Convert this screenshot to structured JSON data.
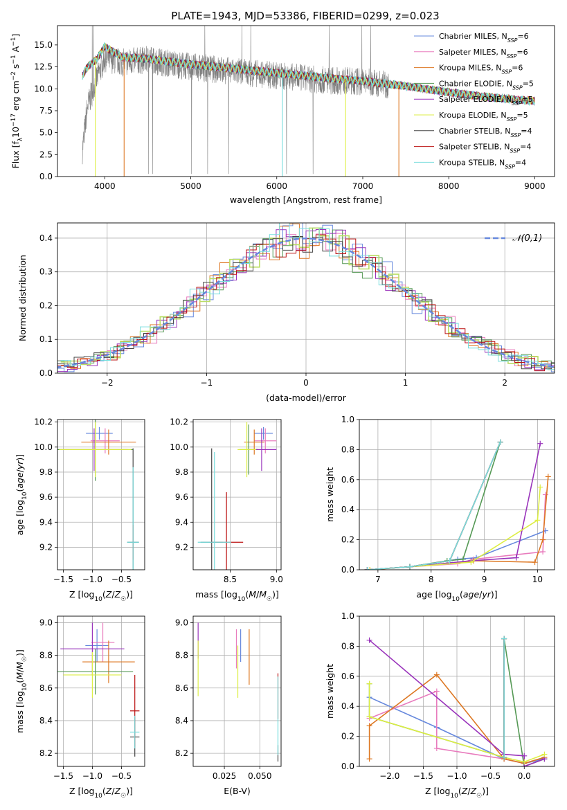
{
  "figure_title": "PLATE=1943, MJD=53386, FIBERID=0299, z=0.023",
  "colors": {
    "chabrier_miles": "#6688dd",
    "salpeter_miles": "#e87bbd",
    "kroupa_miles": "#dd7722",
    "chabrier_elodie": "#559955",
    "salpeter_elodie": "#9933bb",
    "kroupa_elodie": "#ddee44",
    "chabrier_stelib": "#444444",
    "salpeter_stelib": "#bb1111",
    "kroupa_stelib": "#77dddd",
    "kroupa_elodie_dark": "#bbdd66",
    "gaussian": "#6688dd",
    "data_gray": "#808080"
  },
  "legend_models": [
    {
      "key": "chabrier_miles",
      "label": "Chabrier MILES, N",
      "sub": "SSP",
      "tail": "=6"
    },
    {
      "key": "salpeter_miles",
      "label": "Salpeter MILES, N",
      "sub": "SSP",
      "tail": "=6"
    },
    {
      "key": "kroupa_miles",
      "label": "Kroupa MILES, N",
      "sub": "SSP",
      "tail": "=6"
    },
    {
      "key": "chabrier_elodie",
      "label": "Chabrier ELODIE, N",
      "sub": "SSP",
      "tail": "=5"
    },
    {
      "key": "salpeter_elodie",
      "label": "Salpeter ELODIE, N",
      "sub": "SSP",
      "tail": "=5"
    },
    {
      "key": "kroupa_elodie",
      "label": "Kroupa ELODIE, N",
      "sub": "SSP",
      "tail": "=5"
    },
    {
      "key": "chabrier_stelib",
      "label": "Chabrier STELIB, N",
      "sub": "SSP",
      "tail": "=4"
    },
    {
      "key": "salpeter_stelib",
      "label": "Salpeter STELIB, N",
      "sub": "SSP",
      "tail": "=4"
    },
    {
      "key": "kroupa_stelib",
      "label": "Kroupa STELIB, N",
      "sub": "SSP",
      "tail": "=4"
    }
  ],
  "chart_data": [
    {
      "id": "spectrum",
      "type": "line",
      "title": "PLATE=1943, MJD=53386, FIBERID=0299, z=0.023",
      "xlabel": "wavelength [Angstrom, rest frame]",
      "ylabel": "Flux [fλ10⁻¹⁷ erg cm⁻² s⁻¹ A⁻¹]",
      "xlim": [
        3450,
        9230
      ],
      "ylim": [
        0,
        17.2
      ],
      "xticks": [
        4000,
        5000,
        6000,
        7000,
        8000,
        9000
      ],
      "yticks": [
        0.0,
        2.5,
        5.0,
        7.5,
        10.0,
        12.5,
        15.0
      ],
      "series": [
        {
          "key": "chabrier_miles",
          "x": [
            3750,
            3900,
            4100,
            4300,
            4600,
            5000,
            5500,
            6000,
            6500,
            7000,
            7400
          ]
        },
        {
          "key": "data",
          "x": [
            3740,
            3800,
            3900,
            4000,
            4200,
            4500,
            5000,
            5500,
            6000,
            6500,
            7000,
            7500,
            8000,
            8500,
            9000
          ],
          "y": [
            3.0,
            8.0,
            11.0,
            13.5,
            13.0,
            13.3,
            12.5,
            12.0,
            11.5,
            11.0,
            10.8,
            10.3,
            9.5,
            9.0,
            8.5
          ]
        },
        {
          "key": "model",
          "x": [
            3740,
            3800,
            3900,
            4000,
            4200,
            4500,
            5000,
            5500,
            6000,
            6500,
            7000,
            7500,
            8000,
            8500,
            9000
          ],
          "y": [
            11.5,
            12.5,
            13.3,
            14.8,
            13.6,
            13.4,
            12.8,
            12.3,
            11.8,
            11.3,
            10.9,
            10.3,
            9.6,
            9.0,
            8.6
          ]
        }
      ],
      "model_drops": [
        {
          "key": "kroupa_elodie",
          "x": 3890
        },
        {
          "key": "kroupa_miles",
          "x": 4225
        },
        {
          "key": "kroupa_stelib",
          "x": 6065
        },
        {
          "key": "kroupa_elodie",
          "x": 6800
        },
        {
          "key": "kroupa_miles",
          "x": 7420
        }
      ]
    },
    {
      "id": "residuals",
      "type": "line",
      "xlabel": "(data-model)/error",
      "ylabel": "Normed distribution",
      "xlim": [
        -2.5,
        2.5
      ],
      "ylim": [
        0,
        0.445
      ],
      "xticks": [
        -2,
        -1,
        0,
        1,
        2
      ],
      "yticks": [
        0.0,
        0.1,
        0.2,
        0.3,
        0.4
      ],
      "gaussian_label": "𝒩(0,1)",
      "gaussian": {
        "mean": 0,
        "sigma": 1
      }
    },
    {
      "id": "age_vs_Z",
      "type": "scatter",
      "xlabel": "Z [log₁₀(Z/Z☉)]",
      "ylabel": "age  [log₁₀(age/yr)]",
      "xlim": [
        -1.6,
        -0.1
      ],
      "ylim": [
        9.02,
        10.22
      ],
      "xticks": [
        -1.5,
        -1.0,
        -0.5
      ],
      "yticks": [
        9.2,
        9.4,
        9.6,
        9.8,
        10.0,
        10.2
      ],
      "points": [
        {
          "key": "chabrier_miles",
          "x": -0.88,
          "xerr": 0.23,
          "y": 10.11,
          "yerr": 0.05
        },
        {
          "key": "salpeter_miles",
          "x": -0.78,
          "xerr": 0.25,
          "y": 10.05,
          "yerr": 0.1
        },
        {
          "key": "kroupa_miles",
          "x": -0.72,
          "xerr": 0.47,
          "y": 10.04,
          "yerr": 0.1
        },
        {
          "key": "chabrier_elodie",
          "x": -0.95,
          "xerr": 0.65,
          "y": 9.98,
          "yerr": 0.25
        },
        {
          "key": "salpeter_elodie",
          "x": -0.97,
          "xerr": 0.58,
          "y": 9.98,
          "yerr": 0.17
        },
        {
          "key": "kroupa_elodie",
          "x": -0.95,
          "xerr": 0.62,
          "y": 9.98,
          "yerr": 0.22
        },
        {
          "key": "chabrier_stelib",
          "x": -0.3,
          "xerr": 0.1,
          "y": 9.24,
          "yerr": 0.75
        },
        {
          "key": "salpeter_stelib",
          "x": -0.3,
          "xerr": 0.02,
          "y": 9.24,
          "yerr": 0.14
        },
        {
          "key": "kroupa_stelib",
          "x": -0.3,
          "xerr": 0.1,
          "y": 9.24,
          "yerr": 0.6
        }
      ]
    },
    {
      "id": "age_vs_mass",
      "type": "scatter",
      "xlabel": "mass [log₁₀(M/M☉)]",
      "xlim": [
        8.1,
        9.05
      ],
      "ylim": [
        9.02,
        10.22
      ],
      "xticks": [
        8.5,
        9.0
      ],
      "yticks": [
        9.2,
        9.4,
        9.6,
        9.8,
        10.0,
        10.2
      ],
      "points": [
        {
          "key": "chabrier_miles",
          "x": 8.86,
          "xerr": 0.1,
          "y": 10.11,
          "yerr": 0.05
        },
        {
          "key": "salpeter_miles",
          "x": 8.88,
          "xerr": 0.12,
          "y": 10.05,
          "yerr": 0.1
        },
        {
          "key": "kroupa_miles",
          "x": 8.76,
          "xerr": 0.11,
          "y": 10.04,
          "yerr": 0.1
        },
        {
          "key": "chabrier_elodie",
          "x": 8.7,
          "xerr": 0.1,
          "y": 9.98,
          "yerr": 0.2
        },
        {
          "key": "salpeter_elodie",
          "x": 8.84,
          "xerr": 0.16,
          "y": 9.98,
          "yerr": 0.17
        },
        {
          "key": "kroupa_elodie",
          "x": 8.68,
          "xerr": 0.1,
          "y": 9.98,
          "yerr": 0.22
        },
        {
          "key": "chabrier_stelib",
          "x": 8.3,
          "xerr": 0.12,
          "y": 9.24,
          "yerr": 0.75
        },
        {
          "key": "salpeter_stelib",
          "x": 8.46,
          "xerr": 0.18,
          "y": 9.24,
          "yerr": 0.4
        },
        {
          "key": "kroupa_stelib",
          "x": 8.33,
          "xerr": 0.18,
          "y": 9.24,
          "yerr": 0.72
        }
      ]
    },
    {
      "id": "massweight_vs_age",
      "type": "line",
      "xlabel": "age  [log₁₀(age/yr)]",
      "ylabel": "mass weight",
      "xlim": [
        6.65,
        10.32
      ],
      "ylim": [
        0,
        1.0
      ],
      "xticks": [
        7,
        8,
        9,
        10
      ],
      "yticks": [
        0.0,
        0.2,
        0.4,
        0.6,
        0.8,
        1.0
      ],
      "series": [
        {
          "key": "chabrier_miles",
          "x": [
            6.8,
            7.6,
            8.5,
            8.85,
            10.15
          ],
          "y": [
            0.0,
            0.02,
            0.07,
            0.08,
            0.26
          ]
        },
        {
          "key": "salpeter_miles",
          "x": [
            6.85,
            7.6,
            8.5,
            8.8,
            10.1,
            10.15
          ],
          "y": [
            0.0,
            0.02,
            0.04,
            0.07,
            0.12,
            0.5
          ]
        },
        {
          "key": "kroupa_miles",
          "x": [
            6.85,
            7.6,
            8.8,
            9.95,
            10.1,
            10.2
          ],
          "y": [
            0.0,
            0.02,
            0.06,
            0.05,
            0.2,
            0.62
          ]
        },
        {
          "key": "chabrier_elodie",
          "x": [
            6.8,
            7.6,
            8.3,
            8.6,
            9.3
          ],
          "y": [
            0.0,
            0.02,
            0.06,
            0.07,
            0.85
          ]
        },
        {
          "key": "salpeter_elodie",
          "x": [
            6.8,
            7.6,
            8.75,
            9.6,
            10.05
          ],
          "y": [
            0.0,
            0.02,
            0.06,
            0.08,
            0.84
          ]
        },
        {
          "key": "kroupa_elodie",
          "x": [
            6.85,
            7.6,
            8.75,
            10.0,
            10.05
          ],
          "y": [
            0.0,
            0.02,
            0.05,
            0.33,
            0.55
          ]
        },
        {
          "key": "chabrier_stelib",
          "x": [
            6.8,
            7.6,
            8.35,
            9.3
          ],
          "y": [
            0.0,
            0.02,
            0.06,
            0.85
          ]
        },
        {
          "key": "salpeter_stelib",
          "x": [
            6.8,
            7.6,
            8.35,
            9.3
          ],
          "y": [
            0.0,
            0.02,
            0.06,
            0.85
          ]
        },
        {
          "key": "kroupa_stelib",
          "x": [
            6.8,
            7.6,
            8.35,
            9.3
          ],
          "y": [
            0.0,
            0.02,
            0.06,
            0.85
          ]
        }
      ]
    },
    {
      "id": "mass_vs_Z",
      "type": "scatter",
      "xlabel": "Z [log₁₀(Z/Z☉)]",
      "ylabel": "mass [log₁₀(M/M☉)]",
      "xlim": [
        -1.6,
        -0.1
      ],
      "ylim": [
        8.12,
        9.04
      ],
      "xticks": [
        -1.5,
        -1.0,
        -0.5
      ],
      "yticks": [
        8.2,
        8.4,
        8.6,
        8.8,
        9.0
      ],
      "points": [
        {
          "key": "chabrier_miles",
          "x": -0.92,
          "xerr": 0.2,
          "y": 8.86,
          "yerr": 0.1
        },
        {
          "key": "salpeter_miles",
          "x": -0.82,
          "xerr": 0.2,
          "y": 8.88,
          "yerr": 0.12
        },
        {
          "key": "kroupa_miles",
          "x": -0.72,
          "xerr": 0.45,
          "y": 8.76,
          "yerr": 0.13
        },
        {
          "key": "chabrier_elodie",
          "x": -0.95,
          "xerr": 0.65,
          "y": 8.7,
          "yerr": 0.14
        },
        {
          "key": "salpeter_elodie",
          "x": -1.0,
          "xerr": 0.55,
          "y": 8.84,
          "yerr": 0.16
        },
        {
          "key": "kroupa_elodie",
          "x": -1.0,
          "xerr": 0.5,
          "y": 8.68,
          "yerr": 0.14
        },
        {
          "key": "chabrier_stelib",
          "x": -0.27,
          "xerr": 0.08,
          "y": 8.3,
          "yerr": 0.12
        },
        {
          "key": "salpeter_stelib",
          "x": -0.27,
          "xerr": 0.08,
          "y": 8.46,
          "yerr": 0.22
        },
        {
          "key": "kroupa_stelib",
          "x": -0.27,
          "xerr": 0.08,
          "y": 8.33,
          "yerr": 0.1
        }
      ]
    },
    {
      "id": "mass_vs_ebv",
      "type": "scatter",
      "xlabel": "E(B-V)",
      "xlim": [
        0.003,
        0.065
      ],
      "ylim": [
        8.12,
        9.04
      ],
      "xticks": [
        0.025,
        0.05
      ],
      "xtick_labels": [
        "0.025",
        "0.050"
      ],
      "yticks": [
        8.2,
        8.4,
        8.6,
        8.8,
        9.0
      ],
      "points": [
        {
          "key": "salpeter_elodie",
          "x": 0.0065,
          "y": 8.89,
          "yerr": 0.11
        },
        {
          "key": "kroupa_elodie",
          "x": 0.0065,
          "y": 8.72,
          "yerr": 0.17
        },
        {
          "key": "salpeter_miles",
          "x": 0.0335,
          "y": 8.84,
          "yerr": 0.12
        },
        {
          "key": "chabrier_miles",
          "x": 0.0365,
          "y": 8.86,
          "yerr": 0.1
        },
        {
          "key": "kroupa_miles",
          "x": 0.0425,
          "y": 8.79,
          "yerr": 0.17
        },
        {
          "key": "kroupa_elodie",
          "x": 0.0345,
          "y": 8.7,
          "yerr": 0.16
        },
        {
          "key": "salpeter_stelib",
          "x": 0.0628,
          "y": 8.55,
          "yerr": 0.14
        },
        {
          "key": "chabrier_stelib",
          "x": 0.0628,
          "y": 8.2,
          "yerr": 0.05
        },
        {
          "key": "kroupa_stelib",
          "x": 0.0628,
          "y": 8.43,
          "yerr": 0.24
        }
      ]
    },
    {
      "id": "massweight_vs_Z",
      "type": "line",
      "xlabel": "Z [log₁₀(Z/Z☉)]",
      "ylabel": "mass weight",
      "xlim": [
        -2.45,
        0.45
      ],
      "ylim": [
        0,
        1.0
      ],
      "xticks": [
        -2.0,
        -1.5,
        -1.0,
        -0.5,
        0.0
      ],
      "yticks": [
        0.0,
        0.2,
        0.4,
        0.6,
        0.8,
        1.0
      ],
      "series": [
        {
          "key": "chabrier_miles",
          "x": [
            -2.3,
            -1.3,
            -0.3,
            0.0,
            0.3
          ],
          "y": [
            0.46,
            0.26,
            0.05,
            0.02,
            0.05
          ]
        },
        {
          "key": "salpeter_miles",
          "x": [
            -2.3,
            -1.3,
            -1.3,
            -0.3,
            0.0,
            0.3
          ],
          "y": [
            0.32,
            0.5,
            0.12,
            0.05,
            0.02,
            0.06
          ]
        },
        {
          "key": "kroupa_miles",
          "x": [
            -2.3,
            -2.3,
            -1.3,
            -0.3,
            0.0,
            0.3
          ],
          "y": [
            0.05,
            0.27,
            0.61,
            0.05,
            0.02,
            0.06
          ]
        },
        {
          "key": "chabrier_elodie",
          "x": [
            -2.3,
            -2.3,
            -0.3,
            -0.3,
            0.0,
            0.3
          ],
          "y": [
            0.55,
            0.33,
            0.06,
            0.85,
            0.0,
            0.05
          ]
        },
        {
          "key": "salpeter_elodie",
          "x": [
            -2.3,
            -0.3,
            0.0,
            0.0,
            0.3
          ],
          "y": [
            0.84,
            0.08,
            0.07,
            0.0,
            0.05
          ]
        },
        {
          "key": "kroupa_elodie",
          "x": [
            -2.3,
            -2.3,
            -0.3,
            0.0,
            0.3
          ],
          "y": [
            0.55,
            0.33,
            0.06,
            0.03,
            0.08
          ]
        },
        {
          "key": "chabrier_stelib",
          "x": [
            -0.3,
            -0.3
          ],
          "y": [
            0.06,
            0.85
          ]
        },
        {
          "key": "salpeter_stelib",
          "x": [
            -0.3,
            -0.3
          ],
          "y": [
            0.06,
            0.85
          ]
        },
        {
          "key": "kroupa_stelib",
          "x": [
            -0.3,
            -0.3
          ],
          "y": [
            0.06,
            0.85
          ]
        }
      ]
    }
  ]
}
